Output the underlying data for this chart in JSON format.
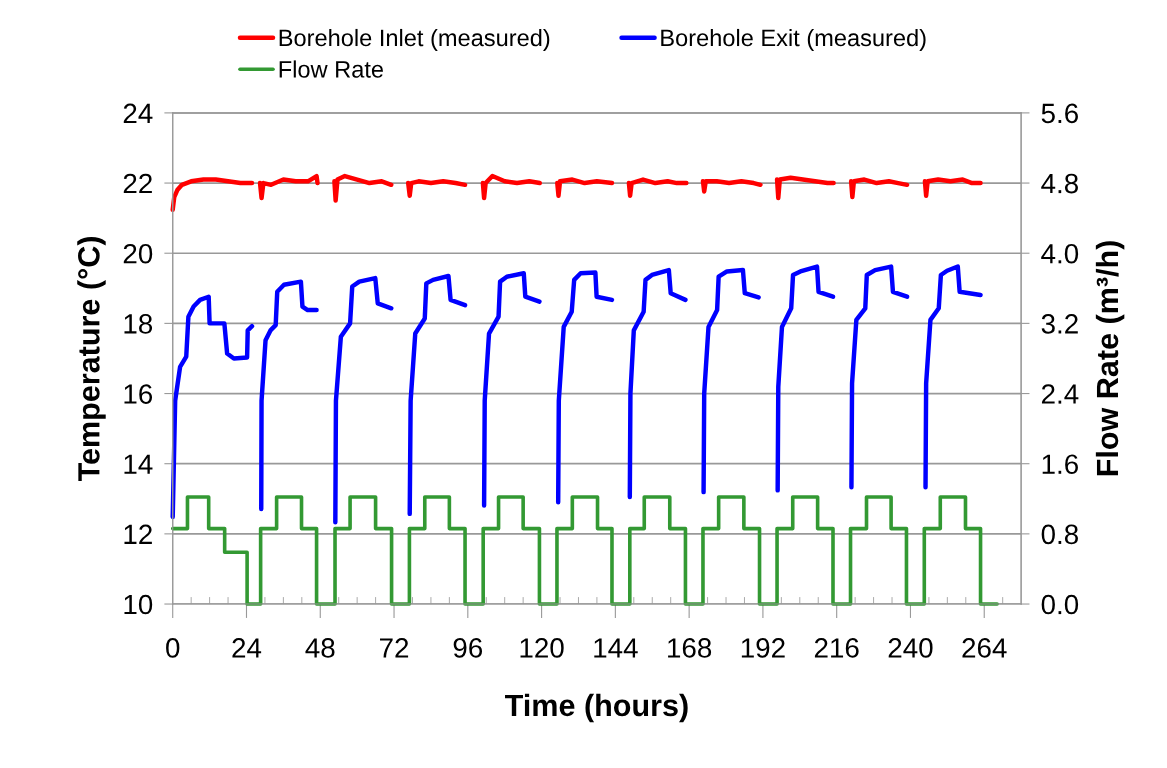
{
  "chart_data": {
    "type": "line",
    "xlabel": "Time (hours)",
    "ylabel": "Temperature (°C)",
    "y2label": "Flow Rate (m³/h)",
    "xlim": [
      0,
      276
    ],
    "xticks": [
      0,
      {
        "value": 6,
        "label": null
      },
      {
        "value": 12,
        "label": null
      },
      {
        "value": 18,
        "label": null
      },
      24,
      {
        "value": 30,
        "label": null
      },
      {
        "value": 36,
        "label": null
      },
      {
        "value": 42,
        "label": null
      },
      48,
      {
        "value": 54,
        "label": null
      },
      {
        "value": 60,
        "label": null
      },
      {
        "value": 66,
        "label": null
      },
      72,
      {
        "value": 78,
        "label": null
      },
      {
        "value": 84,
        "label": null
      },
      {
        "value": 90,
        "label": null
      },
      96,
      {
        "value": 102,
        "label": null
      },
      {
        "value": 108,
        "label": null
      },
      {
        "value": 114,
        "label": null
      },
      120,
      {
        "value": 126,
        "label": null
      },
      {
        "value": 132,
        "label": null
      },
      {
        "value": 138,
        "label": null
      },
      144,
      {
        "value": 150,
        "label": null
      },
      {
        "value": 156,
        "label": null
      },
      {
        "value": 162,
        "label": null
      },
      168,
      {
        "value": 174,
        "label": null
      },
      {
        "value": 180,
        "label": null
      },
      {
        "value": 186,
        "label": null
      },
      192,
      {
        "value": 198,
        "label": null
      },
      {
        "value": 204,
        "label": null
      },
      {
        "value": 210,
        "label": null
      },
      216,
      {
        "value": 222,
        "label": null
      },
      {
        "value": 228,
        "label": null
      },
      {
        "value": 234,
        "label": null
      },
      240,
      {
        "value": 246,
        "label": null
      },
      {
        "value": 252,
        "label": null
      },
      {
        "value": 258,
        "label": null
      },
      264,
      {
        "value": 270,
        "label": null
      }
    ],
    "ylim": [
      10,
      24
    ],
    "yticks": [
      10,
      12,
      14,
      16,
      18,
      20,
      22,
      24
    ],
    "y2lim": [
      0,
      5.6
    ],
    "y2ticks": [
      {
        "value": 0,
        "label": "0.0"
      },
      0.8,
      1.6,
      2.4,
      3.2,
      {
        "value": 4,
        "label": "4.0"
      },
      4.8,
      5.6
    ],
    "grid": "y",
    "legend": "top",
    "series": [
      {
        "name": "Borehole Inlet (measured)",
        "color": "#ff0000",
        "x": [
          0,
          0.5,
          1.5,
          3,
          6,
          10,
          14,
          18,
          22,
          25.8,
          27,
          28.4,
          28.9,
          29.5,
          32,
          36,
          40,
          44,
          46.8,
          47.1,
          50,
          52.6,
          53.0,
          53.6,
          56,
          60,
          64,
          68,
          71.1,
          74,
          76.6,
          77.1,
          77.6,
          80,
          84,
          88,
          92,
          95.1,
          98,
          100.9,
          101.3,
          101.8,
          104,
          108,
          112,
          116,
          119.4,
          122,
          125.1,
          125.5,
          126,
          130,
          134,
          138,
          142.9,
          146,
          148.4,
          148.8,
          149.3,
          153,
          157,
          161,
          164,
          167.1,
          170,
          172.5,
          172.9,
          173.4,
          177,
          181,
          185,
          189,
          191.2,
          194,
          196.6,
          197.0,
          197.5,
          201,
          205,
          209,
          213,
          215,
          218,
          220.7,
          221.1,
          221.6,
          225,
          229,
          233,
          236,
          238.9,
          242,
          244.7,
          245.1,
          245.6,
          249,
          253,
          257,
          260,
          262.8
        ],
        "values": [
          21.24,
          21.6,
          21.8,
          21.95,
          22.05,
          22.1,
          22.1,
          22.05,
          22.0,
          22.0,
          null,
          22.0,
          21.57,
          22.0,
          21.95,
          22.1,
          22.05,
          22.05,
          22.2,
          22.0,
          null,
          22.05,
          21.5,
          22.1,
          22.2,
          22.1,
          22.0,
          22.05,
          21.95,
          null,
          22.0,
          21.64,
          22.0,
          22.05,
          22.0,
          22.05,
          22.0,
          21.95,
          null,
          22.0,
          21.57,
          22.0,
          22.2,
          22.05,
          22.0,
          22.05,
          22.0,
          null,
          22.0,
          21.64,
          22.05,
          22.1,
          22.0,
          22.05,
          22.0,
          null,
          22.0,
          21.64,
          22.0,
          22.1,
          22.0,
          22.05,
          22.0,
          22.0,
          null,
          22.05,
          21.76,
          22.05,
          22.05,
          22.0,
          22.05,
          22.0,
          21.95,
          null,
          22.1,
          21.57,
          22.1,
          22.15,
          22.1,
          22.05,
          22.0,
          22.0,
          null,
          22.05,
          21.6,
          22.05,
          22.1,
          22.0,
          22.05,
          22.0,
          21.95,
          null,
          22.05,
          21.64,
          22.05,
          22.1,
          22.05,
          22.1,
          22.0,
          22.0
        ]
      },
      {
        "name": "Borehole Exit (measured)",
        "color": "#0000ff",
        "x": [
          0,
          0.8,
          2.4,
          4.4,
          5.1,
          6.8,
          8.9,
          11.7,
          12.0,
          16.8,
          17.7,
          19.9,
          24.2,
          24.4,
          25.8,
          27,
          28.8,
          28.9,
          30.2,
          31.8,
          33.5,
          34.0,
          36.2,
          41.7,
          42.2,
          43.9,
          46.8,
          50,
          52.9,
          53.1,
          54.7,
          57.7,
          58.4,
          60.7,
          65.9,
          66.7,
          71.1,
          74,
          77.1,
          77.4,
          78.9,
          82.0,
          82.5,
          84.7,
          89.7,
          90.4,
          95.1,
          98,
          101.3,
          101.5,
          102.9,
          106.0,
          106.5,
          108.7,
          114.2,
          114.7,
          119.3,
          122,
          125.4,
          125.6,
          127.2,
          129.8,
          130.6,
          132.7,
          137.5,
          137.9,
          142.9,
          146,
          148.7,
          148.9,
          150.0,
          153.2,
          153.8,
          155.9,
          161.4,
          162.0,
          166.8,
          170,
          172.7,
          172.9,
          174.3,
          177.1,
          177.6,
          180.3,
          185.5,
          186.1,
          190.6,
          194,
          196.8,
          197.0,
          198.2,
          201.2,
          201.8,
          204.2,
          209.6,
          210.1,
          214.8,
          218,
          220.8,
          221.0,
          222.4,
          225.3,
          225.8,
          228.5,
          233.7,
          234.3,
          238.9,
          242,
          244.9,
          245.1,
          246.5,
          249.2,
          249.9,
          251.9,
          255.4,
          256.0,
          262.8
        ],
        "values": [
          12.48,
          15.8,
          16.76,
          17.05,
          18.19,
          18.48,
          18.67,
          18.76,
          18.0,
          18.0,
          17.14,
          17.0,
          17.03,
          17.8,
          17.92,
          null,
          12.71,
          15.8,
          17.52,
          17.8,
          17.95,
          18.9,
          19.1,
          19.19,
          18.48,
          18.38,
          18.38,
          null,
          12.33,
          15.8,
          17.62,
          18.0,
          19.05,
          19.19,
          19.29,
          18.57,
          18.43,
          null,
          12.57,
          15.8,
          17.71,
          18.14,
          19.14,
          19.24,
          19.35,
          18.67,
          18.52,
          null,
          12.81,
          15.8,
          17.71,
          18.19,
          19.19,
          19.33,
          19.43,
          18.76,
          18.62,
          null,
          12.9,
          15.8,
          17.9,
          18.33,
          19.24,
          19.43,
          19.45,
          18.76,
          18.67,
          null,
          13.05,
          16.0,
          17.8,
          18.33,
          19.24,
          19.38,
          19.52,
          18.86,
          18.67,
          null,
          13.19,
          16.0,
          17.9,
          18.38,
          19.33,
          19.48,
          19.52,
          18.86,
          18.74,
          null,
          13.24,
          16.19,
          17.9,
          18.43,
          19.38,
          19.48,
          19.62,
          18.9,
          18.76,
          null,
          13.33,
          16.29,
          18.1,
          18.43,
          19.38,
          19.52,
          19.62,
          18.9,
          18.76,
          null,
          13.33,
          16.29,
          18.1,
          18.43,
          19.38,
          19.5,
          19.62,
          18.9,
          18.81
        ]
      },
      {
        "name": "Flow Rate",
        "color": "#339933",
        "type": "step",
        "axis": "y2",
        "x": [
          0,
          4.8,
          11.7,
          16.9,
          24.2,
          28.6,
          33.8,
          41.9,
          46.8,
          52.8,
          57.7,
          66,
          71.2,
          77,
          82,
          90,
          95.1,
          101,
          106,
          114,
          119.3,
          125,
          130,
          138.2,
          142.9,
          148.7,
          153.4,
          161.7,
          166.8,
          172.5,
          177.6,
          185.8,
          190.9,
          196.6,
          201.7,
          209.8,
          214.8,
          220.5,
          225.7,
          233.7,
          238.7,
          244.5,
          249.7,
          257.9,
          262.8,
          268.2
        ],
        "values": [
          0.86,
          1.22,
          0.86,
          0.59,
          0,
          0.86,
          1.22,
          0.86,
          0,
          0.86,
          1.22,
          0.86,
          0,
          0.86,
          1.22,
          0.86,
          0,
          0.86,
          1.22,
          0.86,
          0,
          0.86,
          1.22,
          0.86,
          0,
          0.86,
          1.22,
          0.86,
          0,
          0.86,
          1.22,
          0.86,
          0,
          0.86,
          1.22,
          0.86,
          0,
          0.86,
          1.22,
          0.86,
          0,
          0.86,
          1.22,
          0.86,
          0,
          0
        ]
      }
    ]
  }
}
